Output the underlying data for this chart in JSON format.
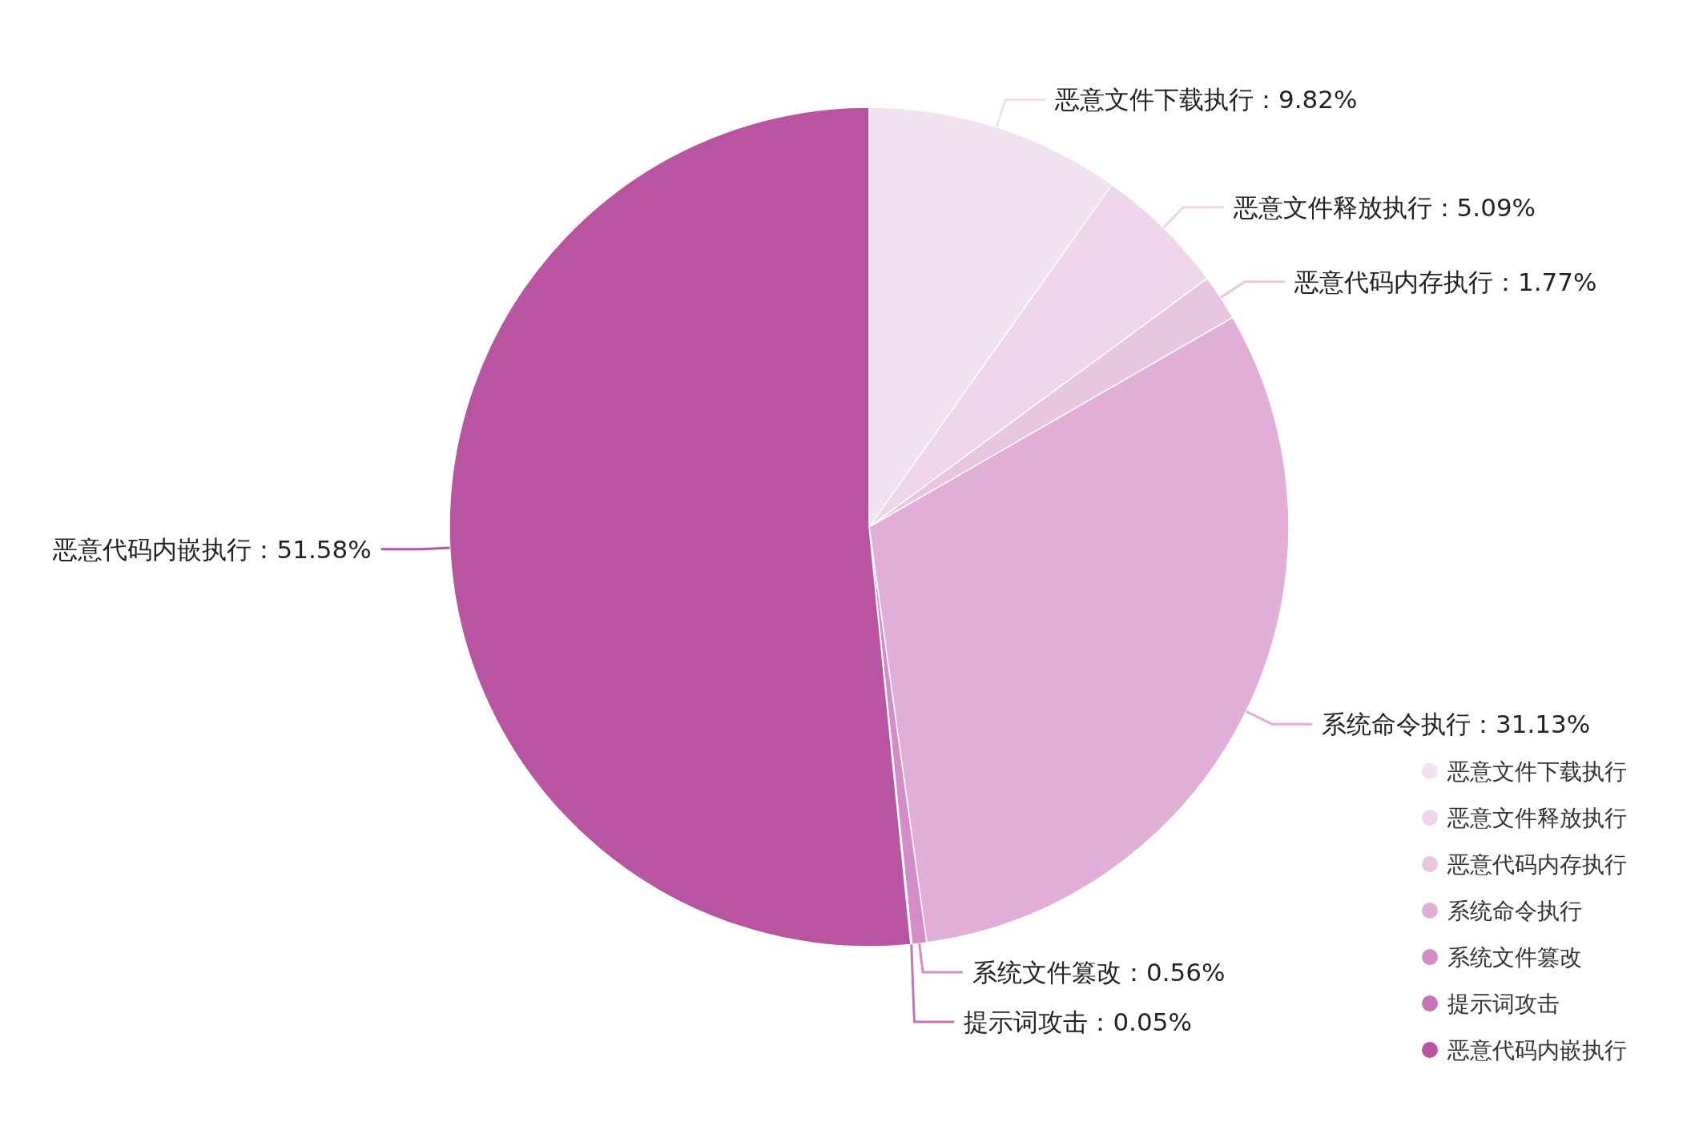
{
  "chart_data": {
    "type": "pie",
    "categories": [
      "恶意文件下载执行",
      "恶意文件释放执行",
      "恶意代码内存执行",
      "系统命令执行",
      "系统文件篡改",
      "提示词攻击",
      "恶意代码内嵌执行"
    ],
    "values": [
      9.82,
      5.09,
      1.77,
      31.13,
      0.56,
      0.05,
      51.58
    ],
    "colors": [
      "#f2e1ee",
      "#eed5e9",
      "#e8c6e1",
      "#e1aed7",
      "#d38cc6",
      "#c872b8",
      "#b854a2"
    ],
    "value_labels": [
      "恶意文件下载执行：9.82%",
      "恶意文件释放执行：5.09%",
      "恶意代码内存执行：1.77%",
      "系统命令执行：31.13%",
      "系统文件篡改：0.56%",
      "提示词攻击：0.05%",
      "恶意代码内嵌执行：51.58%"
    ],
    "legend": "bottom right"
  }
}
